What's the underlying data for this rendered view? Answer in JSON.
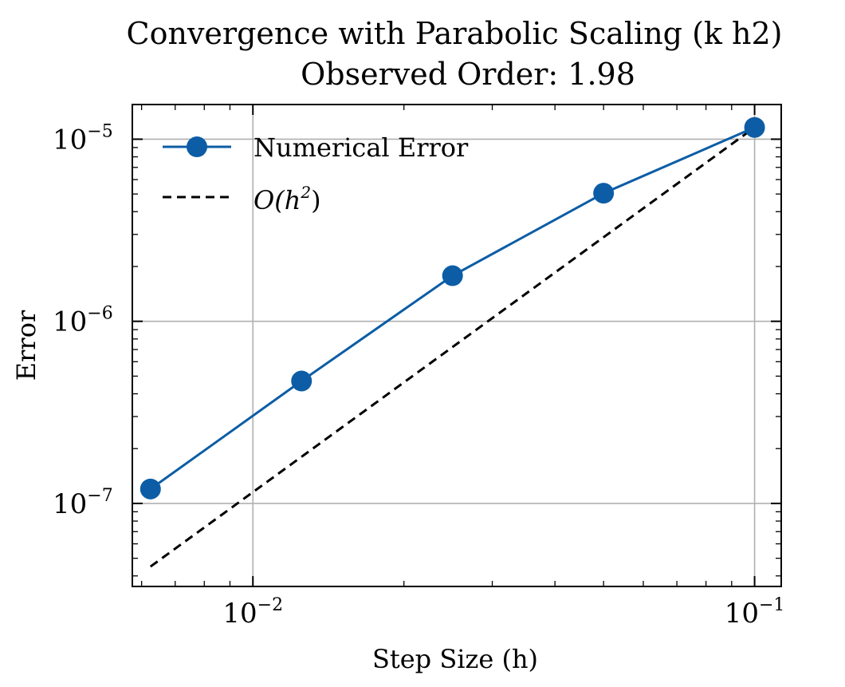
{
  "chart_data": {
    "type": "line",
    "title": "Convergence with Parabolic Scaling (k   h2)",
    "subtitle": "Observed Order: 1.98",
    "xlabel": "Step Size (h)",
    "ylabel": "Error",
    "xscale": "log",
    "yscale": "log",
    "xlim": [
      0.00575,
      0.113
    ],
    "ylim": [
      3.5e-08,
      1.55e-05
    ],
    "grid": true,
    "legend_position": "top-left",
    "x_ticks": [
      {
        "value": 0.01,
        "base": "10",
        "exp": "−2"
      },
      {
        "value": 0.1,
        "base": "10",
        "exp": "−1"
      }
    ],
    "y_ticks": [
      {
        "value": 1e-07,
        "base": "10",
        "exp": "−7"
      },
      {
        "value": 1e-06,
        "base": "10",
        "exp": "−6"
      },
      {
        "value": 1e-05,
        "base": "10",
        "exp": "−5"
      }
    ],
    "series": [
      {
        "name": "Numerical Error",
        "style": "solid-with-markers",
        "color": "#0C5DA5",
        "x": [
          0.00625,
          0.0125,
          0.025,
          0.05,
          0.1
        ],
        "y": [
          1.2e-07,
          4.7e-07,
          1.78e-06,
          5.05e-06,
          1.16e-05
        ]
      },
      {
        "name": "O(h2)",
        "style": "dashed",
        "color": "#000000",
        "x": [
          0.00625,
          0.1
        ],
        "y": [
          4.5e-08,
          1.16e-05
        ]
      }
    ]
  }
}
